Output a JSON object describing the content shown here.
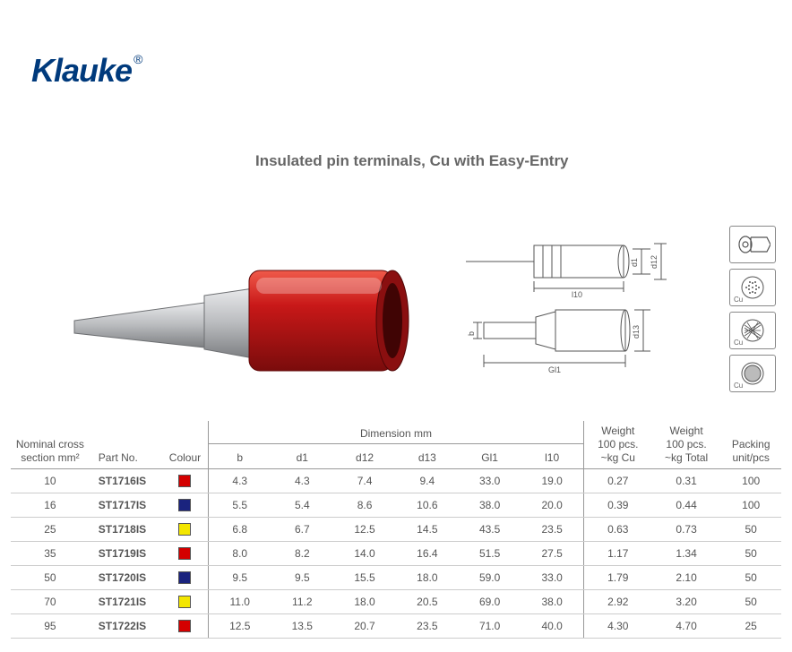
{
  "brand": {
    "name": "Klauke",
    "reg": "®"
  },
  "title": "Insulated pin terminals, Cu with Easy-Entry",
  "icons": [
    {
      "name": "terminal-icon",
      "cu": false
    },
    {
      "name": "strand-fine-icon",
      "cu": true
    },
    {
      "name": "strand-medium-icon",
      "cu": true
    },
    {
      "name": "strand-solid-icon",
      "cu": true
    }
  ],
  "table": {
    "headers": {
      "ncs1": "Nominal cross",
      "ncs2": "section mm²",
      "part": "Part No.",
      "colour": "Colour",
      "dim_group": "Dimension mm",
      "b": "b",
      "d1": "d1",
      "d12": "d12",
      "d13": "d13",
      "gl1": "Gl1",
      "l10": "l10",
      "w1a": "Weight",
      "w1b": "100 pcs.",
      "w1c": "~kg Cu",
      "w2a": "Weight",
      "w2b": "100 pcs.",
      "w2c": "~kg Total",
      "pack1": "Packing",
      "pack2": "unit/pcs"
    },
    "rows": [
      {
        "ncs": "10",
        "part": "ST1716IS",
        "colour": "#d40000",
        "b": "4.3",
        "d1": "4.3",
        "d12": "7.4",
        "d13": "9.4",
        "gl1": "33.0",
        "l10": "19.0",
        "wcu": "0.27",
        "wtot": "0.31",
        "pack": "100"
      },
      {
        "ncs": "16",
        "part": "ST1717IS",
        "colour": "#1a237e",
        "b": "5.5",
        "d1": "5.4",
        "d12": "8.6",
        "d13": "10.6",
        "gl1": "38.0",
        "l10": "20.0",
        "wcu": "0.39",
        "wtot": "0.44",
        "pack": "100"
      },
      {
        "ncs": "25",
        "part": "ST1718IS",
        "colour": "#f3e600",
        "b": "6.8",
        "d1": "6.7",
        "d12": "12.5",
        "d13": "14.5",
        "gl1": "43.5",
        "l10": "23.5",
        "wcu": "0.63",
        "wtot": "0.73",
        "pack": "50"
      },
      {
        "ncs": "35",
        "part": "ST1719IS",
        "colour": "#d40000",
        "b": "8.0",
        "d1": "8.2",
        "d12": "14.0",
        "d13": "16.4",
        "gl1": "51.5",
        "l10": "27.5",
        "wcu": "1.17",
        "wtot": "1.34",
        "pack": "50"
      },
      {
        "ncs": "50",
        "part": "ST1720IS",
        "colour": "#1a237e",
        "b": "9.5",
        "d1": "9.5",
        "d12": "15.5",
        "d13": "18.0",
        "gl1": "59.0",
        "l10": "33.0",
        "wcu": "1.79",
        "wtot": "2.10",
        "pack": "50"
      },
      {
        "ncs": "70",
        "part": "ST1721IS",
        "colour": "#f3e600",
        "b": "11.0",
        "d1": "11.2",
        "d12": "18.0",
        "d13": "20.5",
        "gl1": "69.0",
        "l10": "38.0",
        "wcu": "2.92",
        "wtot": "3.20",
        "pack": "50"
      },
      {
        "ncs": "95",
        "part": "ST1722IS",
        "colour": "#d40000",
        "b": "12.5",
        "d1": "13.5",
        "d12": "20.7",
        "d13": "23.5",
        "gl1": "71.0",
        "l10": "40.0",
        "wcu": "4.30",
        "wtot": "4.70",
        "pack": "25"
      }
    ]
  },
  "drawing_labels": {
    "d1": "d1",
    "d12": "d12",
    "d13": "d13",
    "l10": "l10",
    "gl1": "Gl1",
    "b": "b"
  },
  "colors": {
    "brand_blue": "#003a7c",
    "text": "#555555",
    "line": "#999999",
    "row_line": "#cccccc",
    "terminal_red": "#c81818",
    "terminal_red_dark": "#8a0f10",
    "metal_light": "#d4d5d7",
    "metal_dark": "#8d8f92"
  }
}
